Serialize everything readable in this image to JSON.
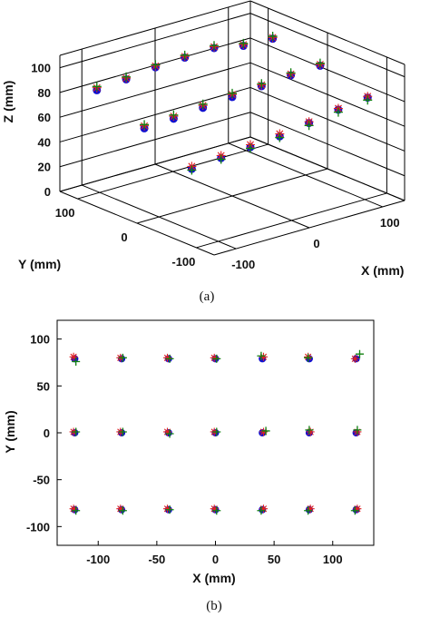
{
  "chart_data": [
    {
      "type": "scatter3d",
      "caption": "(a)",
      "xlabel": "X (mm)",
      "ylabel": "Y (mm)",
      "zlabel": "Z (mm)",
      "xticks": [
        "-100",
        "0",
        "100"
      ],
      "yticks": [
        "100",
        "0",
        "-100"
      ],
      "zticks": [
        "0",
        "20",
        "40",
        "60",
        "80",
        "100"
      ],
      "xlim": [
        -130,
        130
      ],
      "ylim": [
        -130,
        130
      ],
      "zlim": [
        0,
        110
      ],
      "grid": true,
      "series": [
        {
          "marker": "circle",
          "color": "#1010d0",
          "points": [
            [
              -120,
              80,
              90
            ],
            [
              -80,
              80,
              92
            ],
            [
              -40,
              80,
              95
            ],
            [
              0,
              80,
              96
            ],
            [
              40,
              80,
              97
            ],
            [
              80,
              80,
              92
            ],
            [
              120,
              80,
              91
            ],
            [
              -120,
              0,
              75
            ],
            [
              -80,
              0,
              76
            ],
            [
              -40,
              0,
              78
            ],
            [
              0,
              0,
              80
            ],
            [
              40,
              0,
              82
            ],
            [
              80,
              0,
              84
            ],
            [
              120,
              0,
              85
            ],
            [
              -120,
              -80,
              58
            ],
            [
              -80,
              -80,
              60
            ],
            [
              -40,
              -80,
              62
            ],
            [
              0,
              -80,
              64
            ],
            [
              40,
              -80,
              68
            ],
            [
              80,
              -80,
              72
            ],
            [
              120,
              -80,
              75
            ]
          ]
        },
        {
          "marker": "star",
          "color": "#e02020",
          "points": [
            [
              -120,
              80,
              92
            ],
            [
              -80,
              80,
              93
            ],
            [
              -40,
              80,
              96
            ],
            [
              0,
              80,
              97
            ],
            [
              40,
              80,
              98
            ],
            [
              80,
              80,
              93
            ],
            [
              120,
              80,
              92
            ],
            [
              -120,
              0,
              77
            ],
            [
              -80,
              0,
              78
            ],
            [
              -40,
              0,
              80
            ],
            [
              0,
              0,
              82
            ],
            [
              40,
              0,
              83
            ],
            [
              80,
              0,
              85
            ],
            [
              120,
              0,
              86
            ],
            [
              -120,
              -80,
              60
            ],
            [
              -80,
              -80,
              62
            ],
            [
              -40,
              -80,
              64
            ],
            [
              0,
              -80,
              66
            ],
            [
              40,
              -80,
              69
            ],
            [
              80,
              -80,
              73
            ],
            [
              120,
              -80,
              76
            ]
          ]
        },
        {
          "marker": "plus",
          "color": "#108010",
          "points": [
            [
              -120,
              80,
              93
            ],
            [
              -80,
              80,
              94
            ],
            [
              -40,
              80,
              97
            ],
            [
              0,
              80,
              98
            ],
            [
              40,
              80,
              99
            ],
            [
              80,
              80,
              94
            ],
            [
              120,
              80,
              93
            ],
            [
              -120,
              0,
              78
            ],
            [
              -80,
              0,
              79
            ],
            [
              -40,
              0,
              81
            ],
            [
              0,
              0,
              83
            ],
            [
              40,
              0,
              84
            ],
            [
              80,
              0,
              86
            ],
            [
              120,
              0,
              87
            ],
            [
              -120,
              -80,
              57
            ],
            [
              -80,
              -80,
              59
            ],
            [
              -40,
              -80,
              61
            ],
            [
              0,
              -80,
              63
            ],
            [
              40,
              -80,
              66
            ],
            [
              80,
              -80,
              70
            ],
            [
              120,
              -80,
              73
            ]
          ]
        }
      ]
    },
    {
      "type": "scatter",
      "caption": "(b)",
      "xlabel": "X (mm)",
      "ylabel": "Y (mm)",
      "xlim": [
        -135,
        135
      ],
      "ylim": [
        -120,
        120
      ],
      "xticks": [
        -100,
        -50,
        0,
        50,
        100
      ],
      "yticks": [
        100,
        50,
        0,
        -50,
        -100
      ],
      "grid": false,
      "series": [
        {
          "marker": "circle",
          "color": "#1010d0",
          "points": [
            [
              -120,
              79
            ],
            [
              -80,
              79
            ],
            [
              -40,
              79
            ],
            [
              0,
              79
            ],
            [
              40,
              79
            ],
            [
              80,
              79
            ],
            [
              120,
              79
            ],
            [
              -120,
              0
            ],
            [
              -80,
              0
            ],
            [
              -40,
              0
            ],
            [
              0,
              0
            ],
            [
              40,
              0
            ],
            [
              80,
              0
            ],
            [
              120,
              0
            ],
            [
              -120,
              -82
            ],
            [
              -80,
              -82
            ],
            [
              -40,
              -82
            ],
            [
              0,
              -82
            ],
            [
              40,
              -82
            ],
            [
              80,
              -82
            ],
            [
              120,
              -82
            ]
          ]
        },
        {
          "marker": "star",
          "color": "#e02020",
          "points": [
            [
              -121,
              81
            ],
            [
              -81,
              80
            ],
            [
              -41,
              80
            ],
            [
              -1,
              80
            ],
            [
              41,
              81
            ],
            [
              79,
              81
            ],
            [
              119,
              79
            ],
            [
              -121,
              1
            ],
            [
              -81,
              1
            ],
            [
              -41,
              1
            ],
            [
              -1,
              1
            ],
            [
              41,
              1
            ],
            [
              81,
              1
            ],
            [
              121,
              1
            ],
            [
              -121,
              -81
            ],
            [
              -81,
              -81
            ],
            [
              -41,
              -81
            ],
            [
              -1,
              -81
            ],
            [
              41,
              -81
            ],
            [
              81,
              -81
            ],
            [
              121,
              -81
            ]
          ]
        },
        {
          "marker": "plus",
          "color": "#108010",
          "points": [
            [
              -119,
              76
            ],
            [
              -79,
              80
            ],
            [
              -39,
              79
            ],
            [
              1,
              79
            ],
            [
              39,
              82
            ],
            [
              79,
              80
            ],
            [
              123,
              84
            ],
            [
              -119,
              1
            ],
            [
              -79,
              1
            ],
            [
              -39,
              -1
            ],
            [
              1,
              1
            ],
            [
              43,
              2
            ],
            [
              80,
              3
            ],
            [
              121,
              3
            ],
            [
              -119,
              -83
            ],
            [
              -79,
              -83
            ],
            [
              -39,
              -82
            ],
            [
              1,
              -83
            ],
            [
              39,
              -83
            ],
            [
              79,
              -83
            ],
            [
              119,
              -83
            ]
          ]
        }
      ]
    }
  ]
}
